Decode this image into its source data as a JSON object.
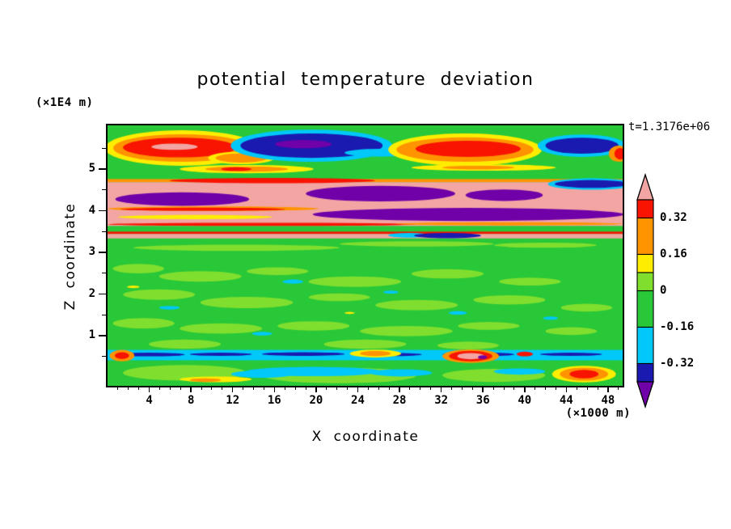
{
  "chart_data": {
    "type": "heatmap",
    "title": "potential temperature deviation",
    "time_label": "t=1.3176e+06",
    "x_label": "X coordinate",
    "x_units": "(×1000 m)",
    "z_label": "Z coordinate",
    "z_units": "(×1E4 m)",
    "x_ticks": [
      4,
      8,
      12,
      16,
      20,
      24,
      28,
      32,
      36,
      40,
      44,
      48
    ],
    "z_ticks": [
      1,
      2,
      3,
      4,
      5
    ],
    "x_range": [
      0,
      49.4
    ],
    "z_range": [
      -0.2,
      6.05
    ],
    "colorbar_range": [
      -0.4,
      0.4
    ],
    "background": "gr",
    "palette": {
      "sa": "#F2A5A3",
      "rd": "#F81400",
      "or": "#FF9400",
      "ye": "#FFED00",
      "lg": "#80DF2E",
      "gr": "#28C838",
      "cy": "#00C8F8",
      "nv": "#1A1AB0",
      "pu": "#7000A8"
    },
    "colorbar": {
      "top_arrow": "sa",
      "bottom_arrow": "pu",
      "segments": [
        {
          "c": "rd",
          "span": 0.08,
          "label": "0.32"
        },
        {
          "c": "or",
          "span": 0.16,
          "label": "0.16"
        },
        {
          "c": "ye",
          "span": 0.08
        },
        {
          "c": "lg",
          "span": 0.08,
          "label": "0"
        },
        {
          "c": "gr",
          "span": 0.16,
          "label": "-0.16"
        },
        {
          "c": "cy",
          "span": 0.16,
          "label": "-0.32"
        },
        {
          "c": "nv",
          "span": 0.08
        }
      ]
    },
    "features": [
      {
        "s": "e",
        "c": "lg",
        "x": 0.25,
        "y": 0.47,
        "w": 0.2,
        "h": 0.012
      },
      {
        "s": "e",
        "c": "lg",
        "x": 0.6,
        "y": 0.455,
        "w": 0.15,
        "h": 0.01
      },
      {
        "s": "e",
        "c": "lg",
        "x": 0.85,
        "y": 0.46,
        "w": 0.1,
        "h": 0.01
      },
      {
        "s": "e",
        "c": "lg",
        "x": 0.06,
        "y": 0.55,
        "w": 0.05,
        "h": 0.018
      },
      {
        "s": "e",
        "c": "lg",
        "x": 0.18,
        "y": 0.58,
        "w": 0.08,
        "h": 0.02
      },
      {
        "s": "e",
        "c": "lg",
        "x": 0.33,
        "y": 0.56,
        "w": 0.06,
        "h": 0.015
      },
      {
        "s": "e",
        "c": "lg",
        "x": 0.48,
        "y": 0.6,
        "w": 0.09,
        "h": 0.02
      },
      {
        "s": "e",
        "c": "lg",
        "x": 0.66,
        "y": 0.57,
        "w": 0.07,
        "h": 0.018
      },
      {
        "s": "e",
        "c": "lg",
        "x": 0.82,
        "y": 0.6,
        "w": 0.06,
        "h": 0.015
      },
      {
        "s": "e",
        "c": "lg",
        "x": 0.1,
        "y": 0.65,
        "w": 0.07,
        "h": 0.02
      },
      {
        "s": "e",
        "c": "lg",
        "x": 0.27,
        "y": 0.68,
        "w": 0.09,
        "h": 0.022
      },
      {
        "s": "e",
        "c": "lg",
        "x": 0.45,
        "y": 0.66,
        "w": 0.06,
        "h": 0.015
      },
      {
        "s": "e",
        "c": "lg",
        "x": 0.6,
        "y": 0.69,
        "w": 0.08,
        "h": 0.02
      },
      {
        "s": "e",
        "c": "lg",
        "x": 0.78,
        "y": 0.67,
        "w": 0.07,
        "h": 0.018
      },
      {
        "s": "e",
        "c": "lg",
        "x": 0.93,
        "y": 0.7,
        "w": 0.05,
        "h": 0.015
      },
      {
        "s": "e",
        "c": "lg",
        "x": 0.07,
        "y": 0.76,
        "w": 0.06,
        "h": 0.02
      },
      {
        "s": "e",
        "c": "lg",
        "x": 0.22,
        "y": 0.78,
        "w": 0.08,
        "h": 0.02
      },
      {
        "s": "e",
        "c": "lg",
        "x": 0.4,
        "y": 0.77,
        "w": 0.07,
        "h": 0.018
      },
      {
        "s": "e",
        "c": "lg",
        "x": 0.58,
        "y": 0.79,
        "w": 0.09,
        "h": 0.02
      },
      {
        "s": "e",
        "c": "lg",
        "x": 0.74,
        "y": 0.77,
        "w": 0.06,
        "h": 0.015
      },
      {
        "s": "e",
        "c": "lg",
        "x": 0.9,
        "y": 0.79,
        "w": 0.05,
        "h": 0.015
      },
      {
        "s": "e",
        "c": "lg",
        "x": 0.15,
        "y": 0.84,
        "w": 0.07,
        "h": 0.018
      },
      {
        "s": "e",
        "c": "lg",
        "x": 0.5,
        "y": 0.84,
        "w": 0.08,
        "h": 0.018
      },
      {
        "s": "e",
        "c": "lg",
        "x": 0.7,
        "y": 0.845,
        "w": 0.06,
        "h": 0.015
      },
      {
        "s": "e",
        "c": "cy",
        "x": 0.36,
        "y": 0.6,
        "w": 0.02,
        "h": 0.008
      },
      {
        "s": "e",
        "c": "cy",
        "x": 0.55,
        "y": 0.64,
        "w": 0.015,
        "h": 0.006
      },
      {
        "s": "e",
        "c": "cy",
        "x": 0.12,
        "y": 0.7,
        "w": 0.02,
        "h": 0.007
      },
      {
        "s": "e",
        "c": "cy",
        "x": 0.68,
        "y": 0.72,
        "w": 0.018,
        "h": 0.007
      },
      {
        "s": "e",
        "c": "cy",
        "x": 0.3,
        "y": 0.8,
        "w": 0.02,
        "h": 0.007
      },
      {
        "s": "e",
        "c": "cy",
        "x": 0.86,
        "y": 0.74,
        "w": 0.015,
        "h": 0.006
      },
      {
        "s": "e",
        "c": "ye",
        "x": 0.05,
        "y": 0.62,
        "w": 0.012,
        "h": 0.005
      },
      {
        "s": "e",
        "c": "ye",
        "x": 0.47,
        "y": 0.72,
        "w": 0.01,
        "h": 0.004
      },
      {
        "s": "e",
        "c": "ye",
        "x": 0.144,
        "y": 0.087,
        "w": 0.149,
        "h": 0.068
      },
      {
        "s": "e",
        "c": "or",
        "x": 0.144,
        "y": 0.087,
        "w": 0.133,
        "h": 0.053
      },
      {
        "s": "e",
        "c": "rd",
        "x": 0.14,
        "y": 0.085,
        "w": 0.11,
        "h": 0.038
      },
      {
        "s": "e",
        "c": "sa",
        "x": 0.13,
        "y": 0.082,
        "w": 0.045,
        "h": 0.012
      },
      {
        "s": "e",
        "c": "ye",
        "x": 0.26,
        "y": 0.125,
        "w": 0.065,
        "h": 0.024
      },
      {
        "s": "e",
        "c": "or",
        "x": 0.26,
        "y": 0.125,
        "w": 0.05,
        "h": 0.018
      },
      {
        "s": "e",
        "c": "cy",
        "x": 0.396,
        "y": 0.078,
        "w": 0.157,
        "h": 0.062
      },
      {
        "s": "e",
        "c": "nv",
        "x": 0.396,
        "y": 0.078,
        "w": 0.138,
        "h": 0.047
      },
      {
        "s": "e",
        "c": "pu",
        "x": 0.38,
        "y": 0.072,
        "w": 0.055,
        "h": 0.016
      },
      {
        "s": "e",
        "c": "cy",
        "x": 0.53,
        "y": 0.105,
        "w": 0.07,
        "h": 0.015
      },
      {
        "s": "e",
        "c": "ye",
        "x": 0.694,
        "y": 0.093,
        "w": 0.149,
        "h": 0.062
      },
      {
        "s": "e",
        "c": "or",
        "x": 0.694,
        "y": 0.093,
        "w": 0.133,
        "h": 0.047
      },
      {
        "s": "e",
        "c": "rd",
        "x": 0.7,
        "y": 0.09,
        "w": 0.102,
        "h": 0.031
      },
      {
        "s": "e",
        "c": "cy",
        "x": 0.921,
        "y": 0.078,
        "w": 0.086,
        "h": 0.043
      },
      {
        "s": "e",
        "c": "nv",
        "x": 0.921,
        "y": 0.078,
        "w": 0.071,
        "h": 0.031
      },
      {
        "s": "e",
        "c": "or",
        "x": 0.992,
        "y": 0.109,
        "w": 0.019,
        "h": 0.031
      },
      {
        "s": "e",
        "c": "rd",
        "x": 0.995,
        "y": 0.109,
        "w": 0.011,
        "h": 0.022
      },
      {
        "s": "e",
        "c": "ye",
        "x": 0.27,
        "y": 0.168,
        "w": 0.13,
        "h": 0.016
      },
      {
        "s": "e",
        "c": "or",
        "x": 0.27,
        "y": 0.168,
        "w": 0.08,
        "h": 0.01
      },
      {
        "s": "e",
        "c": "rd",
        "x": 0.25,
        "y": 0.168,
        "w": 0.03,
        "h": 0.007
      },
      {
        "s": "e",
        "c": "ye",
        "x": 0.73,
        "y": 0.162,
        "w": 0.14,
        "h": 0.012
      },
      {
        "s": "e",
        "c": "or",
        "x": 0.72,
        "y": 0.162,
        "w": 0.07,
        "h": 0.007
      },
      {
        "s": "r",
        "c": "or",
        "x": 0,
        "y": 0.206,
        "w": 1,
        "h": 0.012
      },
      {
        "s": "r",
        "c": "sa",
        "x": 0,
        "y": 0.218,
        "w": 1,
        "h": 0.168
      },
      {
        "s": "e",
        "c": "rd",
        "x": 0.32,
        "y": 0.212,
        "w": 0.2,
        "h": 0.01
      },
      {
        "s": "e",
        "c": "pu",
        "x": 0.145,
        "y": 0.283,
        "w": 0.13,
        "h": 0.026
      },
      {
        "s": "e",
        "c": "pu",
        "x": 0.53,
        "y": 0.262,
        "w": 0.145,
        "h": 0.03
      },
      {
        "s": "e",
        "c": "pu",
        "x": 0.77,
        "y": 0.268,
        "w": 0.075,
        "h": 0.022
      },
      {
        "s": "e",
        "c": "cy",
        "x": 0.94,
        "y": 0.225,
        "w": 0.085,
        "h": 0.022
      },
      {
        "s": "e",
        "c": "nv",
        "x": 0.94,
        "y": 0.225,
        "w": 0.072,
        "h": 0.015
      },
      {
        "s": "e",
        "c": "or",
        "x": 0.205,
        "y": 0.32,
        "w": 0.205,
        "h": 0.009
      },
      {
        "s": "e",
        "c": "rd",
        "x": 0.185,
        "y": 0.322,
        "w": 0.16,
        "h": 0.006
      },
      {
        "s": "e",
        "c": "ye",
        "x": 0.17,
        "y": 0.352,
        "w": 0.15,
        "h": 0.008
      },
      {
        "s": "e",
        "c": "pu",
        "x": 0.7,
        "y": 0.342,
        "w": 0.302,
        "h": 0.025
      },
      {
        "s": "e",
        "c": "rd",
        "x": 0.3,
        "y": 0.38,
        "w": 0.3,
        "h": 0.006
      },
      {
        "s": "e",
        "c": "or",
        "x": 0.78,
        "y": 0.378,
        "w": 0.22,
        "h": 0.006
      },
      {
        "s": "r",
        "c": "rd",
        "x": 0,
        "y": 0.408,
        "w": 1,
        "h": 0.009
      },
      {
        "s": "r",
        "c": "sa",
        "x": 0,
        "y": 0.417,
        "w": 1,
        "h": 0.017
      },
      {
        "s": "e",
        "c": "cy",
        "x": 0.585,
        "y": 0.422,
        "w": 0.04,
        "h": 0.009
      },
      {
        "s": "e",
        "c": "nv",
        "x": 0.66,
        "y": 0.423,
        "w": 0.065,
        "h": 0.01
      },
      {
        "s": "r",
        "c": "cy",
        "x": 0,
        "y": 0.862,
        "w": 1,
        "h": 0.04
      },
      {
        "s": "e",
        "c": "nv",
        "x": 0.08,
        "y": 0.88,
        "w": 0.07,
        "h": 0.007
      },
      {
        "s": "e",
        "c": "nv",
        "x": 0.22,
        "y": 0.879,
        "w": 0.06,
        "h": 0.006
      },
      {
        "s": "e",
        "c": "nv",
        "x": 0.38,
        "y": 0.878,
        "w": 0.08,
        "h": 0.007
      },
      {
        "s": "e",
        "c": "nv",
        "x": 0.55,
        "y": 0.88,
        "w": 0.06,
        "h": 0.006
      },
      {
        "s": "e",
        "c": "nv",
        "x": 0.72,
        "y": 0.879,
        "w": 0.07,
        "h": 0.007
      },
      {
        "s": "e",
        "c": "nv",
        "x": 0.9,
        "y": 0.879,
        "w": 0.06,
        "h": 0.006
      },
      {
        "s": "e",
        "c": "or",
        "x": 0.028,
        "y": 0.884,
        "w": 0.024,
        "h": 0.022
      },
      {
        "s": "e",
        "c": "rd",
        "x": 0.028,
        "y": 0.884,
        "w": 0.014,
        "h": 0.013
      },
      {
        "s": "e",
        "c": "ye",
        "x": 0.52,
        "y": 0.876,
        "w": 0.05,
        "h": 0.015
      },
      {
        "s": "e",
        "c": "or",
        "x": 0.52,
        "y": 0.876,
        "w": 0.03,
        "h": 0.01
      },
      {
        "s": "e",
        "c": "or",
        "x": 0.705,
        "y": 0.886,
        "w": 0.055,
        "h": 0.026
      },
      {
        "s": "e",
        "c": "rd",
        "x": 0.705,
        "y": 0.886,
        "w": 0.042,
        "h": 0.02
      },
      {
        "s": "e",
        "c": "sa",
        "x": 0.705,
        "y": 0.886,
        "w": 0.026,
        "h": 0.012
      },
      {
        "s": "e",
        "c": "pu",
        "x": 0.728,
        "y": 0.89,
        "w": 0.009,
        "h": 0.007
      },
      {
        "s": "e",
        "c": "rd",
        "x": 0.81,
        "y": 0.878,
        "w": 0.016,
        "h": 0.009
      },
      {
        "s": "e",
        "c": "lg",
        "x": 0.15,
        "y": 0.95,
        "w": 0.12,
        "h": 0.03
      },
      {
        "s": "e",
        "c": "lg",
        "x": 0.45,
        "y": 0.96,
        "w": 0.15,
        "h": 0.03
      },
      {
        "s": "e",
        "c": "lg",
        "x": 0.75,
        "y": 0.96,
        "w": 0.1,
        "h": 0.025
      },
      {
        "s": "e",
        "c": "cy",
        "x": 0.4,
        "y": 0.945,
        "w": 0.13,
        "h": 0.018
      },
      {
        "s": "e",
        "c": "cy",
        "x": 0.57,
        "y": 0.95,
        "w": 0.06,
        "h": 0.014
      },
      {
        "s": "e",
        "c": "cy",
        "x": 0.8,
        "y": 0.945,
        "w": 0.05,
        "h": 0.012
      },
      {
        "s": "e",
        "c": "cy",
        "x": 0.3,
        "y": 0.955,
        "w": 0.06,
        "h": 0.014
      },
      {
        "s": "e",
        "c": "ye",
        "x": 0.925,
        "y": 0.955,
        "w": 0.062,
        "h": 0.032
      },
      {
        "s": "e",
        "c": "or",
        "x": 0.925,
        "y": 0.955,
        "w": 0.047,
        "h": 0.025
      },
      {
        "s": "e",
        "c": "rd",
        "x": 0.925,
        "y": 0.955,
        "w": 0.028,
        "h": 0.016
      },
      {
        "s": "e",
        "c": "ye",
        "x": 0.21,
        "y": 0.975,
        "w": 0.07,
        "h": 0.011
      },
      {
        "s": "e",
        "c": "or",
        "x": 0.19,
        "y": 0.978,
        "w": 0.03,
        "h": 0.007
      }
    ]
  }
}
